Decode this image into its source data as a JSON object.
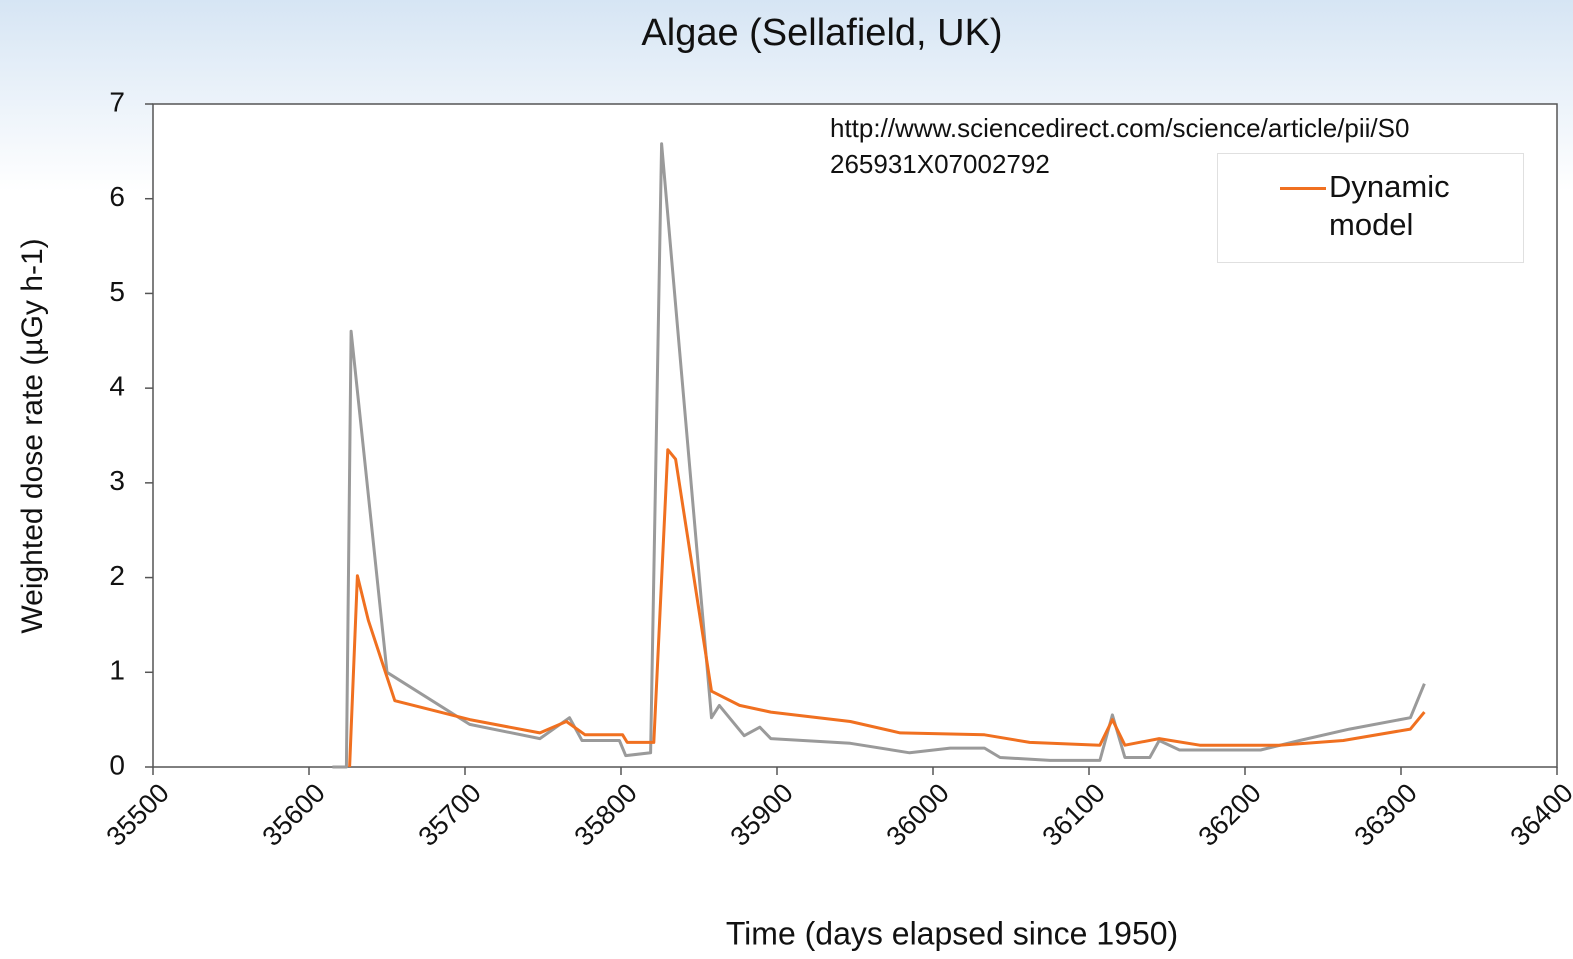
{
  "chart_data": {
    "type": "line",
    "title": "Algae (Sellafield, UK)",
    "x_label": "Time  (days elapsed since 1950)",
    "y_label": "Weighted dose rate (µGy h-1)",
    "annotation": [
      "http://www.sciencedirect.com/science/article/pii/S0",
      "265931X07002792"
    ],
    "xlim": [
      35500,
      36400
    ],
    "xticks": [
      35500,
      35600,
      35700,
      35800,
      35900,
      36000,
      36100,
      36200,
      36300,
      36400
    ],
    "ylim": [
      0,
      7
    ],
    "yticks": [
      0,
      1,
      2,
      3,
      4,
      5,
      6,
      7
    ],
    "series": [
      {
        "color": "#9a9a9a",
        "x": [
          35615,
          35624,
          35627,
          35650,
          35703,
          35748,
          35767,
          35775,
          35799,
          35803,
          35819,
          35826,
          35858,
          35863,
          35879,
          35889,
          35896,
          35947,
          35985,
          36011,
          36033,
          36043,
          36075,
          36107,
          36115,
          36123,
          36139,
          36145,
          36158,
          36210,
          36235,
          36267,
          36306,
          36315
        ],
        "values": [
          0,
          0,
          4.6,
          1.0,
          0.45,
          0.3,
          0.52,
          0.28,
          0.28,
          0.12,
          0.15,
          6.58,
          0.52,
          0.65,
          0.33,
          0.42,
          0.3,
          0.25,
          0.15,
          0.2,
          0.2,
          0.1,
          0.07,
          0.07,
          0.55,
          0.1,
          0.1,
          0.28,
          0.18,
          0.18,
          0.28,
          0.4,
          0.52,
          0.88
        ]
      },
      {
        "name": "Dynamic model",
        "color": "#f07020",
        "x": [
          35626,
          35631,
          35638,
          35655,
          35703,
          35748,
          35765,
          35777,
          35801,
          35804,
          35821,
          35830,
          35835,
          35858,
          35876,
          35896,
          35947,
          35979,
          36033,
          36062,
          36107,
          36115,
          36123,
          36145,
          36171,
          36222,
          36263,
          36306,
          36315
        ],
        "values": [
          0,
          2.02,
          1.55,
          0.7,
          0.5,
          0.36,
          0.48,
          0.34,
          0.34,
          0.26,
          0.26,
          3.35,
          3.25,
          0.8,
          0.65,
          0.58,
          0.48,
          0.36,
          0.34,
          0.26,
          0.23,
          0.5,
          0.23,
          0.3,
          0.23,
          0.23,
          0.28,
          0.4,
          0.58
        ]
      }
    ]
  }
}
